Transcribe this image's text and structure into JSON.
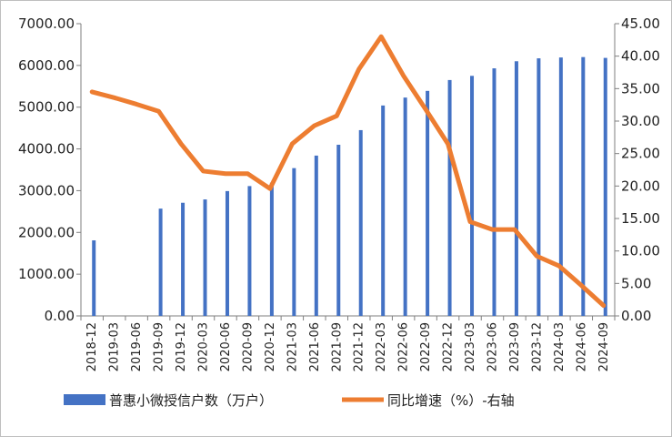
{
  "chart_data": {
    "type": "bar+line",
    "categories": [
      "2018-12",
      "2019-03",
      "2019-06",
      "2019-09",
      "2019-12",
      "2020-03",
      "2020-06",
      "2020-09",
      "2020-12",
      "2021-03",
      "2021-06",
      "2021-09",
      "2021-12",
      "2022-03",
      "2022-06",
      "2022-09",
      "2022-12",
      "2023-03",
      "2023-06",
      "2023-09",
      "2023-12",
      "2024-03",
      "2024-06",
      "2024-09"
    ],
    "series": [
      {
        "name": "普惠小微授信户数（万户）",
        "type": "bar",
        "axis": "left",
        "color": "#4472C4",
        "values": [
          1810,
          null,
          null,
          2570,
          2710,
          2790,
          2990,
          3110,
          3190,
          3540,
          3840,
          4100,
          4450,
          5040,
          5230,
          5390,
          5650,
          5750,
          5930,
          6100,
          6170,
          6190,
          6200,
          6180
        ]
      },
      {
        "name": "同比增速（%）-右轴",
        "type": "line",
        "axis": "right",
        "color": "#ED7D31",
        "values": [
          34.5,
          33.6,
          32.6,
          31.5,
          26.5,
          22.3,
          21.9,
          21.9,
          19.6,
          26.5,
          29.3,
          30.8,
          38.0,
          43.0,
          37.0,
          31.8,
          26.5,
          14.5,
          13.3,
          13.3,
          9.2,
          7.7,
          4.7,
          1.6
        ]
      }
    ],
    "yAxisLeft": {
      "min": 0,
      "max": 7000,
      "step": 1000,
      "tickLabels": [
        "0.00",
        "1000.00",
        "2000.00",
        "3000.00",
        "4000.00",
        "5000.00",
        "6000.00",
        "7000.00"
      ]
    },
    "yAxisRight": {
      "min": 0,
      "max": 45,
      "step": 5,
      "tickLabels": [
        "0.00",
        "5.00",
        "10.00",
        "15.00",
        "20.00",
        "25.00",
        "30.00",
        "35.00",
        "40.00",
        "45.00"
      ]
    },
    "grid": false,
    "legend": "bottom"
  }
}
